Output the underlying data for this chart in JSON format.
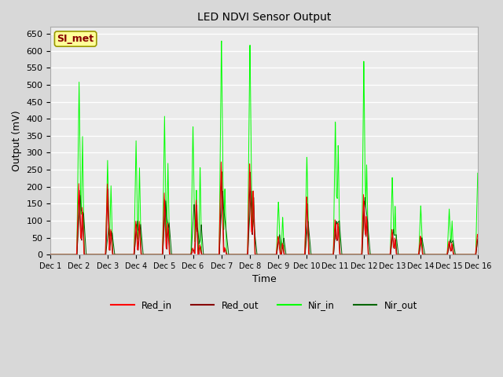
{
  "title": "LED NDVI Sensor Output",
  "xlabel": "Time",
  "ylabel": "Output (mV)",
  "ylim": [
    0,
    670
  ],
  "yticks": [
    0,
    50,
    100,
    150,
    200,
    250,
    300,
    350,
    400,
    450,
    500,
    550,
    600,
    650
  ],
  "x_labels": [
    "Dec 1",
    "Dec 2",
    "Dec 3",
    "Dec 4",
    "Dec 5",
    "Dec 6",
    "Dec 7",
    "Dec 8",
    "Dec 9",
    "Dec 10",
    "Dec 11",
    "Dec 12",
    "Dec 13",
    "Dec 14",
    "Dec 15",
    "Dec 16"
  ],
  "annotation_text": "SI_met",
  "annotation_bg": "#ffff99",
  "annotation_border": "#999900",
  "annotation_text_color": "#880000",
  "colors": {
    "Red_in": "#ff0000",
    "Red_out": "#880000",
    "Nir_in": "#00ff00",
    "Nir_out": "#006600"
  },
  "background_color": "#d8d8d8",
  "plot_bg": "#ebebeb",
  "grid_color": "#ffffff",
  "figsize": [
    6.4,
    4.8
  ],
  "dpi": 100
}
